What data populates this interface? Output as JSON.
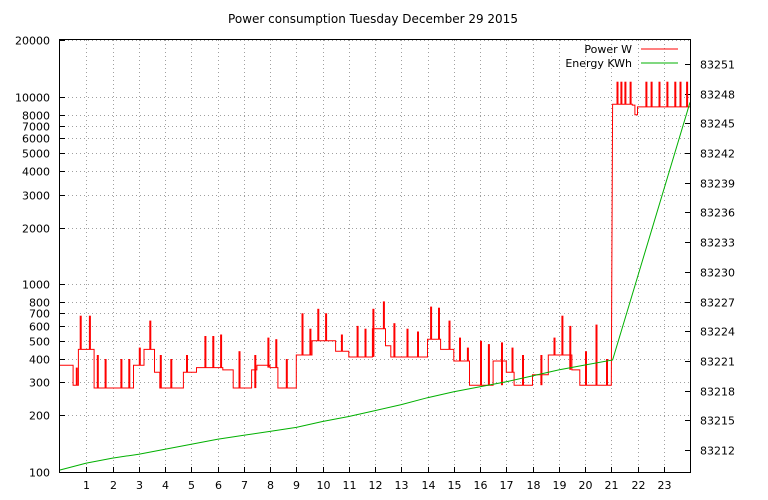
{
  "chart_data": {
    "type": "line",
    "title": "Power consumption Tuesday December 29 2015",
    "grid": true,
    "legend_placement": "top-right",
    "x": {
      "range": [
        0,
        24
      ],
      "ticks": [
        1,
        2,
        3,
        4,
        5,
        6,
        7,
        8,
        9,
        10,
        11,
        12,
        13,
        14,
        15,
        16,
        17,
        18,
        19,
        20,
        21,
        22,
        23
      ]
    },
    "y_left": {
      "scale": "log",
      "range": [
        100,
        20000
      ],
      "ticks": [
        {
          "v": 100,
          "label": "100"
        },
        {
          "v": 200,
          "label": "200"
        },
        {
          "v": 300,
          "label": "300"
        },
        {
          "v": 400,
          "label": "400"
        },
        {
          "v": 500,
          "label": "500"
        },
        {
          "v": 600,
          "label": "600"
        },
        {
          "v": 700,
          "label": "700"
        },
        {
          "v": 800,
          "label": "800"
        },
        {
          "v": 1000,
          "label": "1000"
        },
        {
          "v": 2000,
          "label": "2000"
        },
        {
          "v": 3000,
          "label": "3000"
        },
        {
          "v": 4000,
          "label": "4000"
        },
        {
          "v": 5000,
          "label": "5000"
        },
        {
          "v": 6000,
          "label": "6000"
        },
        {
          "v": 7000,
          "label": "7000"
        },
        {
          "v": 8000,
          "label": "8000"
        },
        {
          "v": 10000,
          "label": "10000"
        },
        {
          "v": 20000,
          "label": "20000"
        }
      ]
    },
    "y_right": {
      "range": [
        83209.8,
        83253.4
      ],
      "ticks": [
        83212,
        83215,
        83218,
        83221,
        83224,
        83227,
        83230,
        83233,
        83236,
        83239,
        83242,
        83245,
        83248,
        83251
      ]
    },
    "series": [
      {
        "name": "Power W",
        "color": "#ff0000",
        "axis": "left",
        "baseline": [
          [
            0,
            370
          ],
          [
            0.5,
            370
          ],
          [
            0.5,
            290
          ],
          [
            0.7,
            290
          ],
          [
            0.7,
            450
          ],
          [
            1.3,
            450
          ],
          [
            1.3,
            280
          ],
          [
            2.8,
            280
          ],
          [
            2.8,
            370
          ],
          [
            3.2,
            370
          ],
          [
            3.2,
            450
          ],
          [
            3.6,
            450
          ],
          [
            3.6,
            340
          ],
          [
            3.8,
            340
          ],
          [
            3.8,
            280
          ],
          [
            4.7,
            280
          ],
          [
            4.7,
            340
          ],
          [
            5.2,
            340
          ],
          [
            5.2,
            360
          ],
          [
            6.2,
            360
          ],
          [
            6.2,
            350
          ],
          [
            6.6,
            350
          ],
          [
            6.6,
            280
          ],
          [
            7.3,
            280
          ],
          [
            7.3,
            350
          ],
          [
            7.5,
            350
          ],
          [
            7.5,
            370
          ],
          [
            8.0,
            370
          ],
          [
            8.0,
            360
          ],
          [
            8.3,
            360
          ],
          [
            8.3,
            280
          ],
          [
            9.0,
            280
          ],
          [
            9.0,
            420
          ],
          [
            9.6,
            420
          ],
          [
            9.6,
            500
          ],
          [
            10.5,
            500
          ],
          [
            10.5,
            440
          ],
          [
            11.0,
            440
          ],
          [
            11.0,
            410
          ],
          [
            11.9,
            410
          ],
          [
            11.9,
            580
          ],
          [
            12.4,
            580
          ],
          [
            12.4,
            470
          ],
          [
            12.6,
            470
          ],
          [
            12.6,
            410
          ],
          [
            14.0,
            410
          ],
          [
            14.0,
            510
          ],
          [
            14.5,
            510
          ],
          [
            14.5,
            450
          ],
          [
            15.0,
            450
          ],
          [
            15.0,
            390
          ],
          [
            15.6,
            390
          ],
          [
            15.6,
            290
          ],
          [
            16.5,
            290
          ],
          [
            16.5,
            390
          ],
          [
            17.0,
            390
          ],
          [
            17.0,
            340
          ],
          [
            17.3,
            340
          ],
          [
            17.3,
            290
          ],
          [
            18.0,
            290
          ],
          [
            18.0,
            330
          ],
          [
            18.6,
            330
          ],
          [
            18.6,
            420
          ],
          [
            19.5,
            420
          ],
          [
            19.5,
            350
          ],
          [
            19.8,
            350
          ],
          [
            19.8,
            290
          ],
          [
            21.0,
            290
          ],
          [
            21.05,
            9100
          ],
          [
            21.8,
            9100
          ],
          [
            21.8,
            9000
          ],
          [
            21.9,
            9000
          ],
          [
            21.9,
            8000
          ],
          [
            22.0,
            8000
          ],
          [
            22.0,
            8800
          ],
          [
            24.0,
            8800
          ]
        ],
        "spikes": [
          [
            0.6,
            290,
            360
          ],
          [
            0.75,
            450,
            680
          ],
          [
            1.1,
            450,
            680
          ],
          [
            1.4,
            280,
            420
          ],
          [
            1.7,
            280,
            400
          ],
          [
            2.3,
            280,
            400
          ],
          [
            2.6,
            280,
            400
          ],
          [
            3.0,
            370,
            460
          ],
          [
            3.4,
            450,
            640
          ],
          [
            3.8,
            280,
            420
          ],
          [
            4.2,
            280,
            400
          ],
          [
            4.8,
            340,
            420
          ],
          [
            5.5,
            360,
            530
          ],
          [
            5.8,
            360,
            530
          ],
          [
            6.1,
            360,
            540
          ],
          [
            6.8,
            280,
            440
          ],
          [
            7.4,
            280,
            420
          ],
          [
            7.9,
            360,
            520
          ],
          [
            8.2,
            360,
            510
          ],
          [
            8.6,
            280,
            400
          ],
          [
            9.2,
            420,
            700
          ],
          [
            9.5,
            420,
            580
          ],
          [
            9.8,
            500,
            740
          ],
          [
            10.1,
            500,
            700
          ],
          [
            10.7,
            440,
            540
          ],
          [
            11.3,
            410,
            600
          ],
          [
            11.6,
            410,
            580
          ],
          [
            11.9,
            410,
            740
          ],
          [
            12.3,
            580,
            810
          ],
          [
            12.7,
            410,
            620
          ],
          [
            13.2,
            410,
            580
          ],
          [
            13.6,
            410,
            560
          ],
          [
            14.1,
            510,
            760
          ],
          [
            14.4,
            510,
            750
          ],
          [
            14.8,
            450,
            640
          ],
          [
            15.2,
            390,
            520
          ],
          [
            15.5,
            390,
            460
          ],
          [
            16.0,
            290,
            500
          ],
          [
            16.3,
            290,
            480
          ],
          [
            16.8,
            290,
            490
          ],
          [
            17.2,
            340,
            460
          ],
          [
            17.6,
            290,
            420
          ],
          [
            18.3,
            290,
            420
          ],
          [
            18.8,
            420,
            520
          ],
          [
            19.1,
            420,
            680
          ],
          [
            19.4,
            350,
            600
          ],
          [
            20.0,
            290,
            440
          ],
          [
            20.4,
            290,
            610
          ],
          [
            20.8,
            290,
            400
          ],
          [
            21.2,
            9100,
            12000
          ],
          [
            21.35,
            9100,
            12000
          ],
          [
            21.5,
            9100,
            12000
          ],
          [
            21.7,
            9100,
            12000
          ],
          [
            22.3,
            8800,
            12000
          ],
          [
            22.5,
            8800,
            12000
          ],
          [
            22.8,
            8800,
            12000
          ],
          [
            23.1,
            8800,
            12000
          ],
          [
            23.4,
            8800,
            12000
          ],
          [
            23.6,
            8800,
            12000
          ],
          [
            23.85,
            8800,
            12000
          ]
        ]
      },
      {
        "name": "Energy KWh",
        "color": "#00b000",
        "axis": "right",
        "points": [
          [
            0,
            83210.0
          ],
          [
            1,
            83210.7
          ],
          [
            2,
            83211.2
          ],
          [
            3,
            83211.6
          ],
          [
            4,
            83212.1
          ],
          [
            5,
            83212.6
          ],
          [
            6,
            83213.1
          ],
          [
            7,
            83213.5
          ],
          [
            8,
            83213.9
          ],
          [
            9,
            83214.3
          ],
          [
            10,
            83214.9
          ],
          [
            11,
            83215.4
          ],
          [
            12,
            83216.0
          ],
          [
            13,
            83216.6
          ],
          [
            14,
            83217.3
          ],
          [
            15,
            83217.9
          ],
          [
            16,
            83218.4
          ],
          [
            17,
            83218.9
          ],
          [
            18,
            83219.5
          ],
          [
            19,
            83220.1
          ],
          [
            20,
            83220.6
          ],
          [
            21.05,
            83221.1
          ],
          [
            24,
            83247.1
          ]
        ]
      }
    ]
  }
}
